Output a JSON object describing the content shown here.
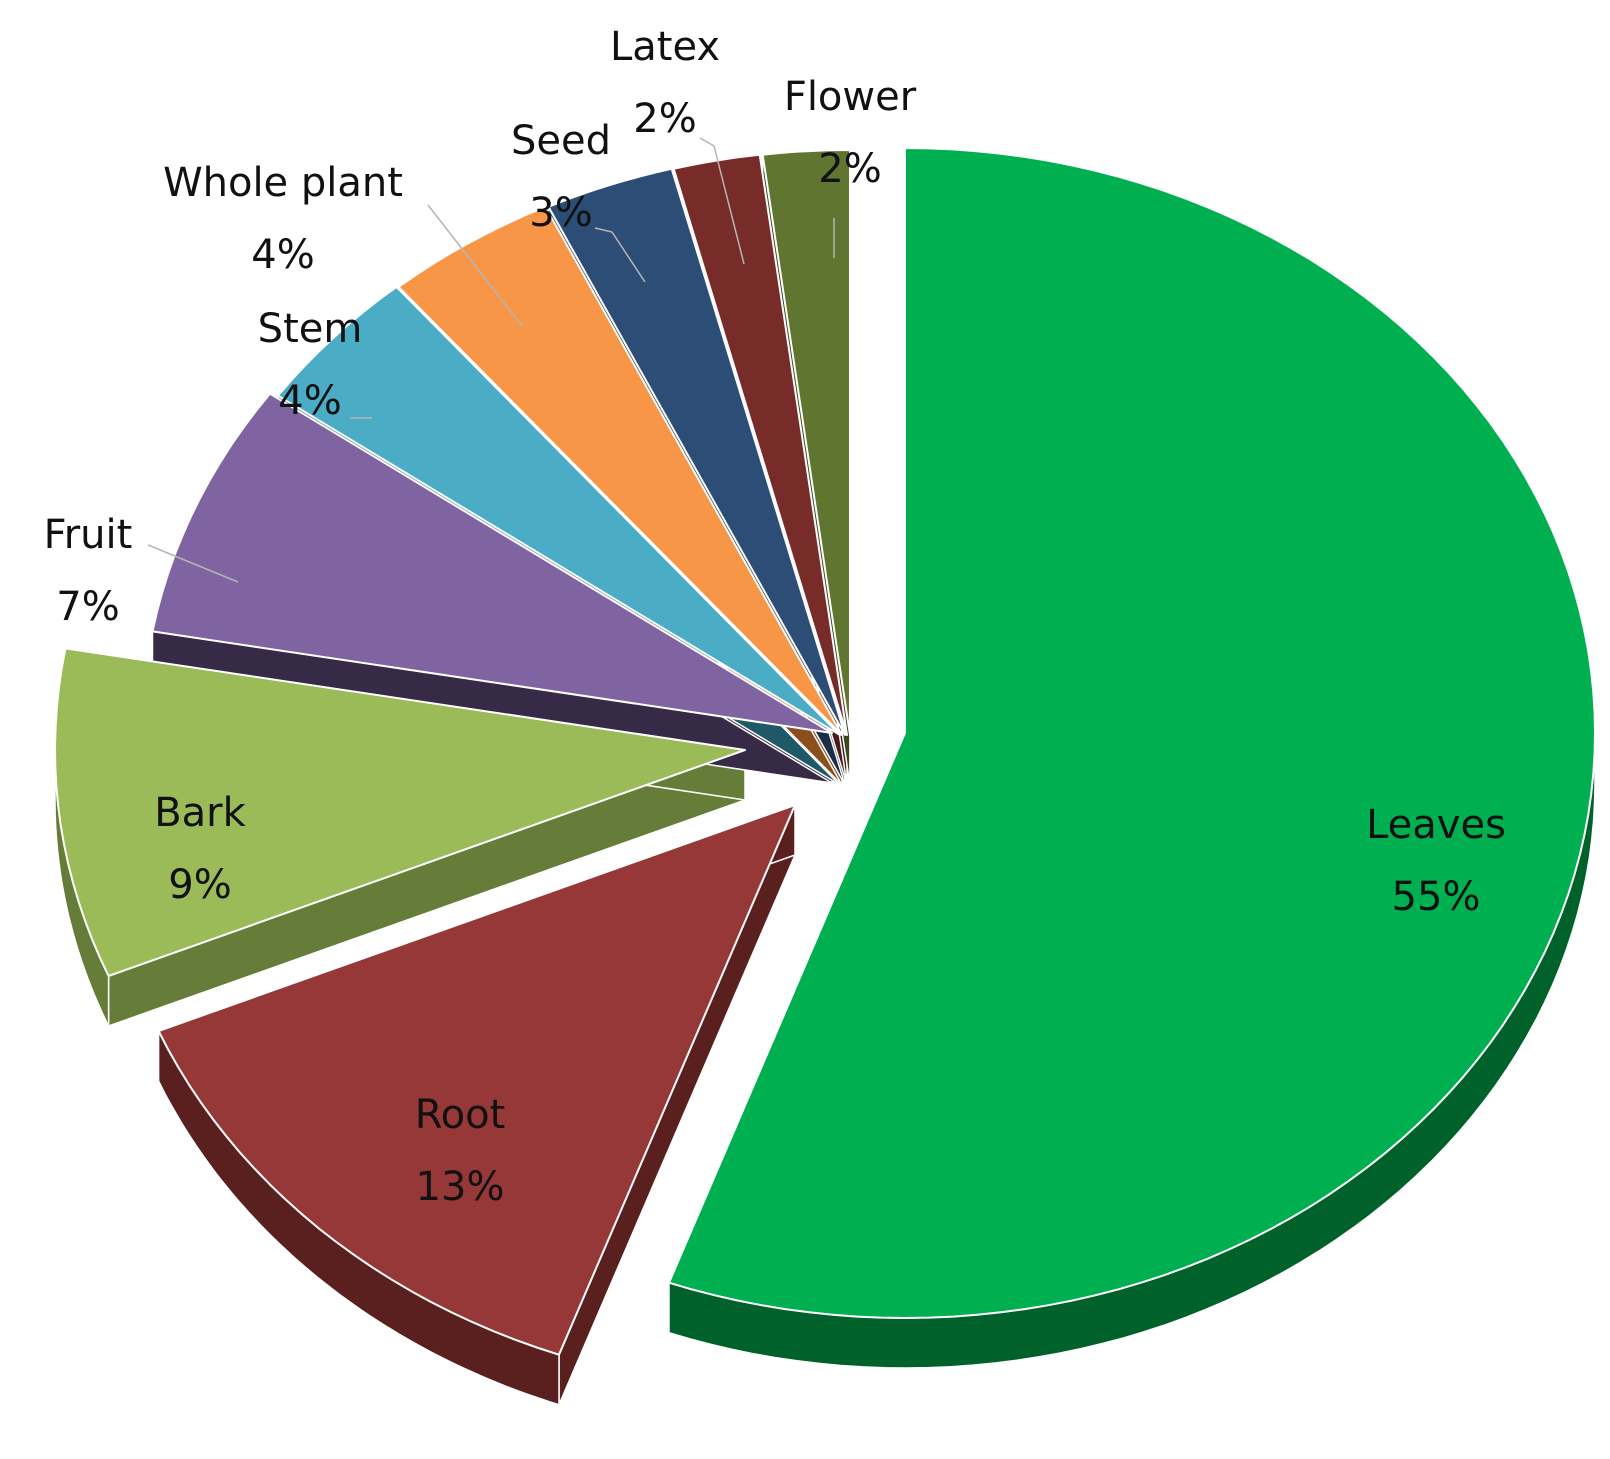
{
  "chart_data": {
    "type": "pie",
    "style": "3d-exploded",
    "slices": [
      {
        "name": "Leaves",
        "value": 55,
        "label": "55%",
        "color": "#00b050",
        "side_color": "#00612b"
      },
      {
        "name": "Root",
        "value": 13,
        "label": "13%",
        "color": "#963838",
        "side_color": "#5a1f1f"
      },
      {
        "name": "Bark",
        "value": 9,
        "label": "9%",
        "color": "#9bbb59",
        "side_color": "#667c39"
      },
      {
        "name": "Fruit",
        "value": 7,
        "label": "7%",
        "color": "#8064a2",
        "side_color": "#372a47"
      },
      {
        "name": "Stem",
        "value": 4,
        "label": "4%",
        "color": "#4bacc6",
        "side_color": "#1f5866"
      },
      {
        "name": "Whole plant",
        "value": 4,
        "label": "4%",
        "color": "#f79646",
        "side_color": "#8a4f1d"
      },
      {
        "name": "Seed",
        "value": 3,
        "label": "3%",
        "color": "#2c4d75",
        "side_color": "#1a2e47"
      },
      {
        "name": "Latex",
        "value": 2,
        "label": "2%",
        "color": "#772c2a",
        "side_color": "#4a1a19"
      },
      {
        "name": "Flower",
        "value": 2,
        "label": "2%",
        "color": "#5f7530",
        "side_color": "#3b4a1c"
      }
    ],
    "legend": "none"
  }
}
